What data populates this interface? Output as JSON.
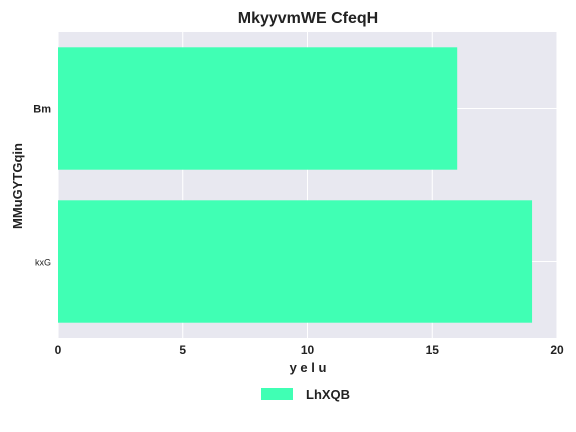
{
  "chart_data": {
    "type": "bar",
    "orientation": "horizontal",
    "title": "MkyyvmWE CfeqH",
    "xlabel": "y e l u",
    "ylabel": "MMuGYTGqin",
    "categories": [
      "Bm",
      "kxG"
    ],
    "series": [
      {
        "name": "LhXQB",
        "values": [
          16,
          19
        ],
        "color": "#40ffb4"
      }
    ],
    "xlim": [
      0,
      20
    ],
    "xticks": [
      "0",
      "5",
      "10",
      "15",
      "20"
    ],
    "grid": true,
    "legend_position": "bottom-center",
    "plot_background": "#e8e8f0"
  }
}
